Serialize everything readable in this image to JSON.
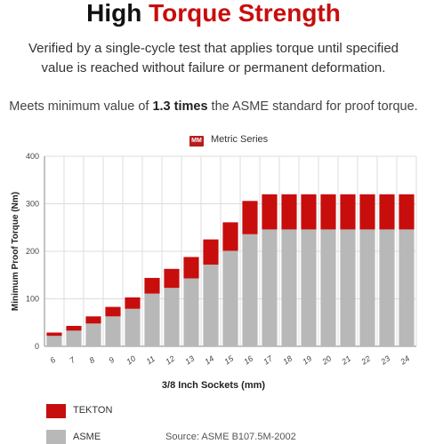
{
  "header": {
    "title_plain": "High ",
    "title_accent": "Torque Strength",
    "subtitle": "Verified by a single-cycle test that applies torque until specified value is reached without failure or permanent deformation.",
    "meets_prefix": "Meets minimum value of ",
    "meets_bold": "1.3 times",
    "meets_suffix": " the ASME standard for proof torque."
  },
  "series_badge": {
    "badge": "MM",
    "label": "Metric Series"
  },
  "colors": {
    "tekton": "#c80d0d",
    "asme": "#b8b8b8",
    "grid": "#dddddd",
    "axis": "#888888"
  },
  "chart_data": {
    "type": "bar",
    "stacked": true,
    "categories": [
      "6",
      "7",
      "8",
      "9",
      "10",
      "11",
      "12",
      "13",
      "14",
      "15",
      "16",
      "17",
      "18",
      "19",
      "20",
      "21",
      "22",
      "23",
      "24"
    ],
    "series": [
      {
        "name": "ASME",
        "values": [
          22,
          33,
          48,
          63,
          79,
          111,
          123,
          143,
          172,
          201,
          236,
          246,
          246,
          246,
          246,
          246,
          246,
          246,
          246
        ]
      },
      {
        "name": "TEKTON",
        "values": [
          7,
          10,
          15,
          20,
          24,
          33,
          40,
          45,
          53,
          60,
          70,
          74,
          74,
          74,
          74,
          74,
          74,
          74,
          74
        ]
      }
    ],
    "xlabel": "3/8 Inch Sockets (mm)",
    "ylabel": "Minimum Proof Torque (Nm)",
    "ylim": [
      0,
      400
    ],
    "yticks": [
      0,
      100,
      200,
      300,
      400
    ],
    "grid": true,
    "legend": [
      "TEKTON",
      "ASME"
    ],
    "source": "Source: ASME B107.5M-2002"
  }
}
